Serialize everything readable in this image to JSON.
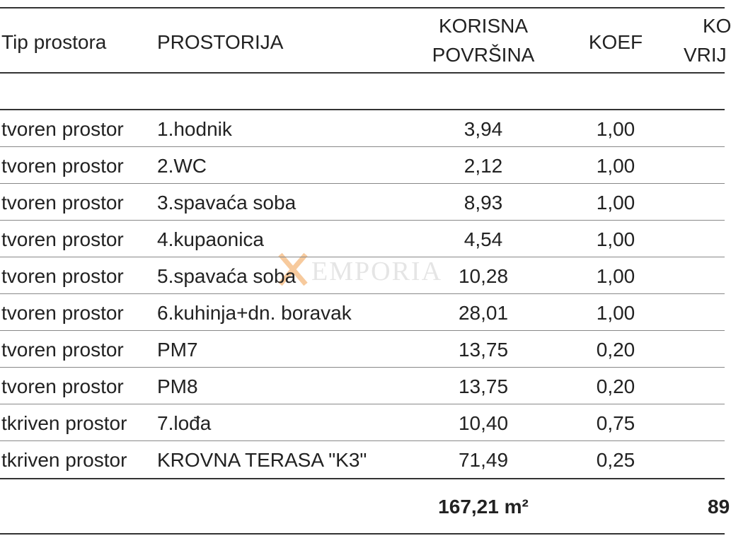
{
  "header": {
    "type": "Tip prostora",
    "room": "PROSTORIJA",
    "area": [
      "KORISNA",
      "POVRŠINA"
    ],
    "coef": "KOEF",
    "value": [
      "KO",
      "VRIJ"
    ]
  },
  "rows": [
    [
      "tvoren prostor",
      "1.hodnik",
      "3,94",
      "1,00"
    ],
    [
      "tvoren prostor",
      "2.WC",
      "2,12",
      "1,00"
    ],
    [
      "tvoren prostor",
      "3.spavaća soba",
      "8,93",
      "1,00"
    ],
    [
      "tvoren prostor",
      "4.kupaonica",
      "4,54",
      "1,00"
    ],
    [
      "tvoren prostor",
      "5.spavaća soba",
      "10,28",
      "1,00"
    ],
    [
      "tvoren prostor",
      "6.kuhinja+dn. boravak",
      "28,01",
      "1,00"
    ],
    [
      "tvoren prostor",
      "PM7",
      "13,75",
      "0,20"
    ],
    [
      "tvoren prostor",
      "PM8",
      "13,75",
      "0,20"
    ],
    [
      "tkriven prostor",
      "7.lođa",
      "10,40",
      "0,75"
    ],
    [
      "tkriven prostor",
      "KROVNA TERASA \"K3\"",
      "71,49",
      "0,25"
    ]
  ],
  "total": {
    "area": "167,21 m²",
    "value": "89"
  },
  "watermark": "EMPORIA"
}
